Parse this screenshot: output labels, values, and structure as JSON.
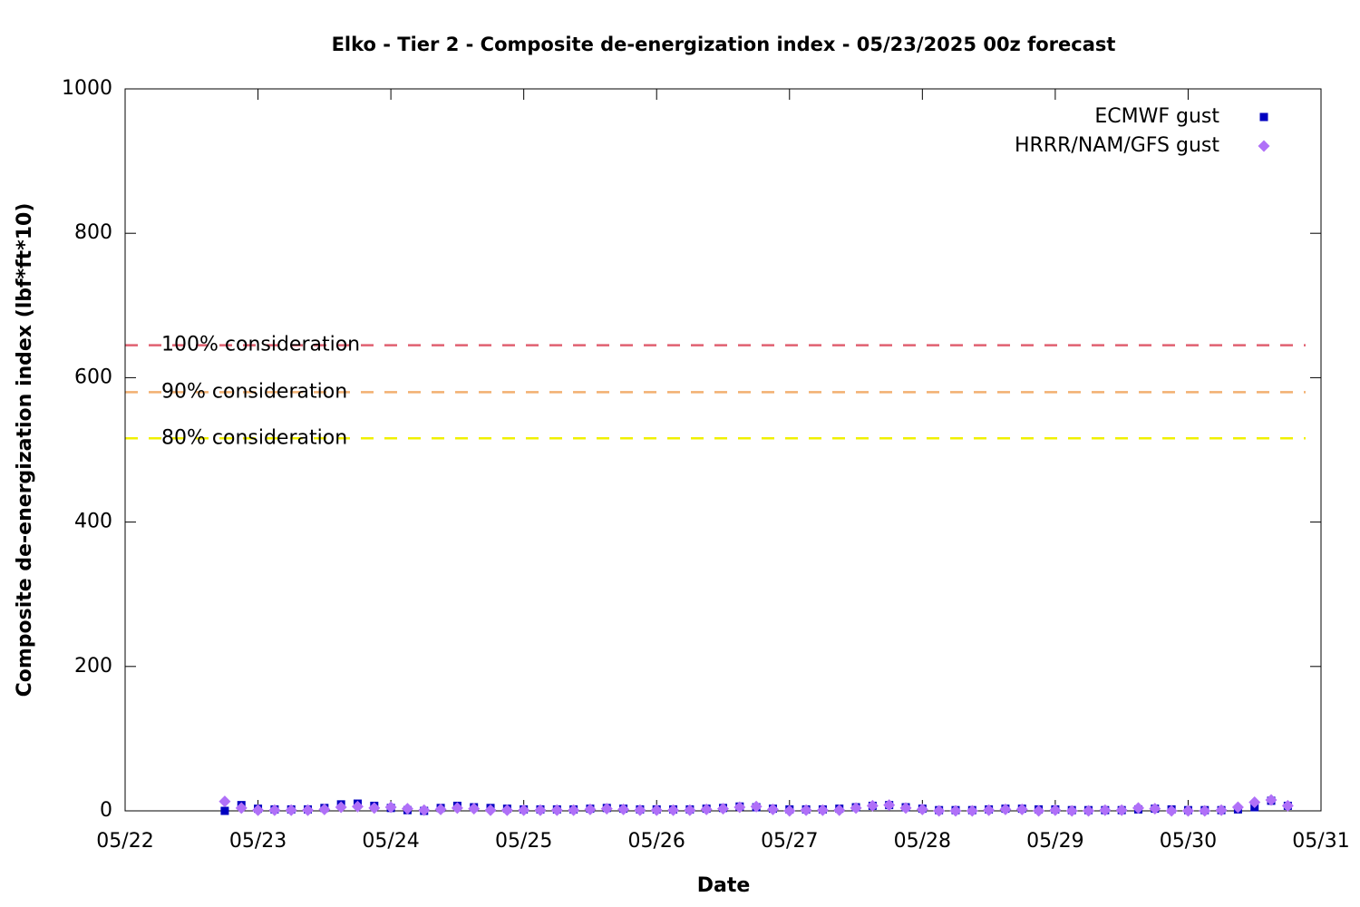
{
  "chart_data": {
    "type": "scatter",
    "title": "Elko - Tier 2 - Composite de-energization index - 05/23/2025 00z forecast",
    "xlabel": "Date",
    "ylabel": "Composite de-energization index (lbf*ft*10)",
    "xlim": [
      "05/22",
      "05/31"
    ],
    "xticks": [
      "05/22",
      "05/23",
      "05/24",
      "05/25",
      "05/26",
      "05/27",
      "05/28",
      "05/29",
      "05/30",
      "05/31"
    ],
    "ylim": [
      0,
      1000
    ],
    "yticks": [
      0,
      200,
      400,
      600,
      800,
      1000
    ],
    "grid": false,
    "legend": "top-right",
    "x": [
      "05/22 18:00",
      "05/22 21:00",
      "05/23 00:00",
      "05/23 03:00",
      "05/23 06:00",
      "05/23 09:00",
      "05/23 12:00",
      "05/23 15:00",
      "05/23 18:00",
      "05/23 21:00",
      "05/24 00:00",
      "05/24 03:00",
      "05/24 06:00",
      "05/24 09:00",
      "05/24 12:00",
      "05/24 15:00",
      "05/24 18:00",
      "05/24 21:00",
      "05/25 00:00",
      "05/25 03:00",
      "05/25 06:00",
      "05/25 09:00",
      "05/25 12:00",
      "05/25 15:00",
      "05/25 18:00",
      "05/25 21:00",
      "05/26 00:00",
      "05/26 03:00",
      "05/26 06:00",
      "05/26 09:00",
      "05/26 12:00",
      "05/26 15:00",
      "05/26 18:00",
      "05/26 21:00",
      "05/27 00:00",
      "05/27 03:00",
      "05/27 06:00",
      "05/27 09:00",
      "05/27 12:00",
      "05/27 15:00",
      "05/27 18:00",
      "05/27 21:00",
      "05/28 00:00",
      "05/28 03:00",
      "05/28 06:00",
      "05/28 09:00",
      "05/28 12:00",
      "05/28 15:00",
      "05/28 18:00",
      "05/28 21:00",
      "05/29 00:00",
      "05/29 03:00",
      "05/29 06:00",
      "05/29 09:00",
      "05/29 12:00",
      "05/29 15:00",
      "05/29 18:00",
      "05/29 21:00",
      "05/30 00:00",
      "05/30 03:00",
      "05/30 06:00",
      "05/30 09:00",
      "05/30 12:00",
      "05/30 15:00",
      "05/30 18:00"
    ],
    "series": [
      {
        "name": "ECMWF gust",
        "color": "#0000c0",
        "marker": "square",
        "values": [
          0,
          8,
          3,
          2,
          2,
          2,
          4,
          9,
          10,
          7,
          4,
          1,
          0,
          4,
          7,
          5,
          4,
          3,
          2,
          2,
          2,
          2,
          3,
          4,
          3,
          2,
          2,
          2,
          2,
          3,
          4,
          6,
          5,
          3,
          2,
          2,
          2,
          3,
          5,
          7,
          8,
          5,
          3,
          1,
          1,
          1,
          2,
          3,
          3,
          2,
          2,
          1,
          1,
          1,
          1,
          2,
          3,
          2,
          1,
          1,
          1,
          2,
          5,
          14,
          7
        ]
      },
      {
        "name": "HRRR/NAM/GFS gust",
        "color": "#b070f8",
        "marker": "diamond",
        "values": [
          13,
          4,
          1,
          1,
          1,
          1,
          2,
          5,
          6,
          4,
          5,
          3,
          1,
          2,
          4,
          3,
          1,
          1,
          1,
          1,
          1,
          1,
          2,
          3,
          2,
          1,
          1,
          1,
          1,
          2,
          3,
          5,
          6,
          2,
          0,
          1,
          1,
          1,
          4,
          7,
          8,
          4,
          2,
          0,
          0,
          0,
          1,
          2,
          2,
          0,
          1,
          0,
          0,
          1,
          1,
          4,
          3,
          0,
          0,
          0,
          1,
          5,
          12,
          15,
          7
        ]
      }
    ],
    "reference_lines": [
      {
        "label": "100% consideration",
        "value": 645,
        "color": "#e06070"
      },
      {
        "label": "90% consideration",
        "value": 580,
        "color": "#f2b070"
      },
      {
        "label": "80% consideration",
        "value": 516,
        "color": "#f0f000"
      }
    ]
  }
}
